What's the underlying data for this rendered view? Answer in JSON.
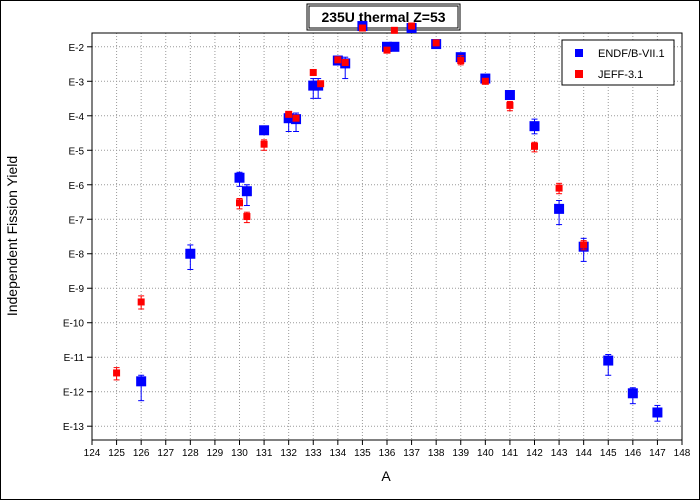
{
  "chart_data": {
    "type": "scatter",
    "title": "235U thermal Z=53",
    "xlabel": "A",
    "ylabel": "Independent Fission Yield",
    "xlim": [
      124,
      148
    ],
    "ylim_exp": [
      -13.4,
      -1.6
    ],
    "y_scale": "log",
    "grid": true,
    "legend_position": "top-right",
    "x_ticks": [
      "124",
      "125",
      "126",
      "127",
      "128",
      "129",
      "130",
      "131",
      "132",
      "133",
      "134",
      "135",
      "136",
      "137",
      "138",
      "139",
      "140",
      "141",
      "142",
      "143",
      "144",
      "145",
      "146",
      "147",
      "148"
    ],
    "y_ticks": [
      "E-2",
      "E-3",
      "E-4",
      "E-5",
      "E-6",
      "E-7",
      "E-8",
      "E-9",
      "E-10",
      "E-11",
      "E-12",
      "E-13"
    ],
    "series": [
      {
        "name": "ENDF/B-VII.1",
        "color": "#0000ff",
        "marker": "square",
        "points": [
          {
            "x": 126,
            "y": 2e-12,
            "ylo": 5.5e-13,
            "yhi": 3e-12
          },
          {
            "x": 128,
            "y": 1e-08,
            "ylo": 3.5e-09,
            "yhi": 1.8e-08
          },
          {
            "x": 130,
            "y": 1.6e-06,
            "ylo": 9e-07,
            "yhi": 2.3e-06
          },
          {
            "x": 130.3,
            "y": 6.5e-07,
            "ylo": 2.5e-07,
            "yhi": 1e-06
          },
          {
            "x": 131,
            "y": 3.8e-05
          },
          {
            "x": 132,
            "y": 8.5e-05,
            "ylo": 3.5e-05,
            "yhi": 0.00013
          },
          {
            "x": 132.3,
            "y": 8e-05,
            "ylo": 3.5e-05,
            "yhi": 0.00012
          },
          {
            "x": 133,
            "y": 0.00075,
            "ylo": 0.00032,
            "yhi": 0.0012
          },
          {
            "x": 133.2,
            "y": 0.00075,
            "ylo": 0.00032,
            "yhi": 0.0012
          },
          {
            "x": 134,
            "y": 0.004
          },
          {
            "x": 134.3,
            "y": 0.0033,
            "ylo": 0.0012,
            "yhi": 0.005
          },
          {
            "x": 135,
            "y": 0.04
          },
          {
            "x": 136,
            "y": 0.01
          },
          {
            "x": 136.3,
            "y": 0.01
          },
          {
            "x": 137,
            "y": 0.035
          },
          {
            "x": 138,
            "y": 0.012
          },
          {
            "x": 139,
            "y": 0.005
          },
          {
            "x": 140,
            "y": 0.0012
          },
          {
            "x": 141,
            "y": 0.0004
          },
          {
            "x": 142,
            "y": 5e-05,
            "ylo": 3e-05,
            "yhi": 8e-05
          },
          {
            "x": 143,
            "y": 2e-07,
            "ylo": 7e-08,
            "yhi": 3.5e-07
          },
          {
            "x": 144,
            "y": 1.6e-08,
            "ylo": 6e-09,
            "yhi": 2.8e-08
          },
          {
            "x": 145,
            "y": 8e-12,
            "ylo": 3e-12,
            "yhi": 1.2e-11
          },
          {
            "x": 146,
            "y": 9e-13,
            "ylo": 4.5e-13,
            "yhi": 1.3e-12
          },
          {
            "x": 147,
            "y": 2.5e-13,
            "ylo": 1.4e-13,
            "yhi": 4e-13
          }
        ]
      },
      {
        "name": "JEFF-3.1",
        "color": "#ff0000",
        "marker": "square",
        "points": [
          {
            "x": 125,
            "y": 3.5e-12,
            "ylo": 2.2e-12,
            "yhi": 5e-12
          },
          {
            "x": 126,
            "y": 4e-10,
            "ylo": 2.5e-10,
            "yhi": 6e-10
          },
          {
            "x": 130,
            "y": 3e-07,
            "ylo": 2e-07,
            "yhi": 4e-07
          },
          {
            "x": 130.3,
            "y": 1.2e-07,
            "ylo": 8e-08,
            "yhi": 1.6e-07
          },
          {
            "x": 131,
            "y": 1.5e-05,
            "ylo": 1e-05,
            "yhi": 2e-05
          },
          {
            "x": 132,
            "y": 0.00011
          },
          {
            "x": 132.3,
            "y": 8.5e-05
          },
          {
            "x": 133,
            "y": 0.0018
          },
          {
            "x": 133.3,
            "y": 0.00085
          },
          {
            "x": 134,
            "y": 0.0042
          },
          {
            "x": 134.3,
            "y": 0.0035
          },
          {
            "x": 135,
            "y": 0.035
          },
          {
            "x": 136,
            "y": 0.008
          },
          {
            "x": 136.3,
            "y": 0.03
          },
          {
            "x": 137,
            "y": 0.04
          },
          {
            "x": 138,
            "y": 0.013
          },
          {
            "x": 139,
            "y": 0.004,
            "ylo": 0.003,
            "yhi": 0.0055
          },
          {
            "x": 140,
            "y": 0.001
          },
          {
            "x": 141,
            "y": 0.0002,
            "ylo": 0.00014,
            "yhi": 0.00026
          },
          {
            "x": 142,
            "y": 1.3e-05,
            "ylo": 9e-06,
            "yhi": 1.7e-05
          },
          {
            "x": 143,
            "y": 8e-07,
            "ylo": 5.5e-07,
            "yhi": 1.1e-06
          },
          {
            "x": 144,
            "y": 1.8e-08,
            "ylo": 1.3e-08,
            "yhi": 2.4e-08
          }
        ]
      }
    ]
  }
}
